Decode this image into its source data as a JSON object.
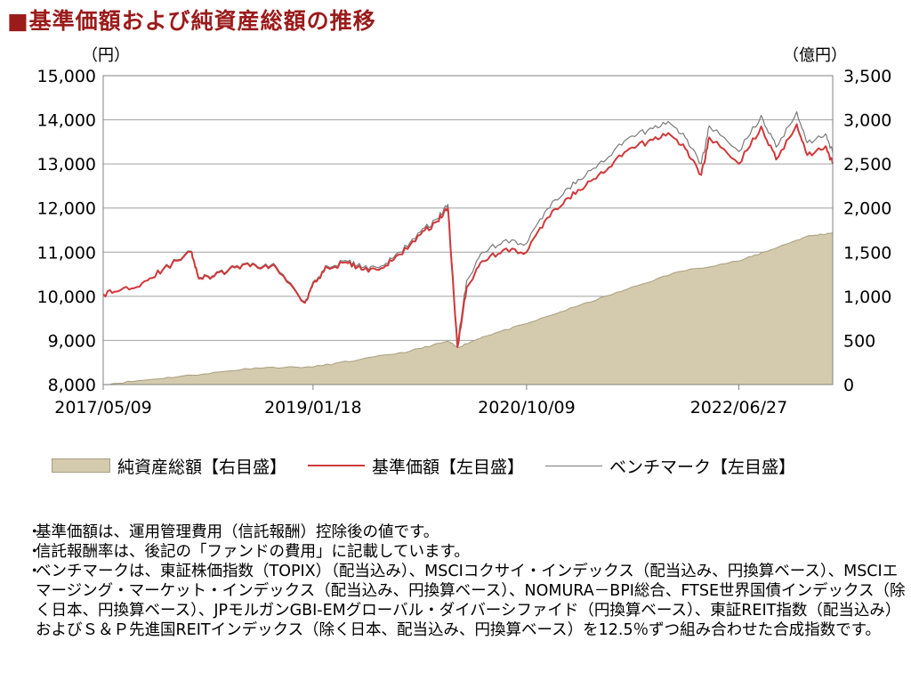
{
  "title": "■基準価額および純資産総額の推移",
  "left_unit": "（円）",
  "right_unit": "（億円）",
  "legend": {
    "nav_total": "純資産総額【右目盛】",
    "base_price": "基準価額【左目盛】",
    "benchmark": "ベンチマーク【左目盛】"
  },
  "notes": [
    "基準価額は、運用管理費用（信託報酬）控除後の値です。",
    "信託報酬率は、後記の「ファンドの費用」に記載しています。",
    "ベンチマークは、東証株価指数（TOPIX）（配当込み）、MSCIコクサイ・インデックス（配当込み、円換算ベース）、MSCIエマージング・マーケット・インデックス（配当込み、円換算ベース）、NOMURA－BPI総合、FTSE世界国債インデックス（除く日本、円換算ベース）、JPモルガンGBI-EMグローバル・ダイバーシファイド（円換算ベース）、東証REIT指数（配当込み）およびＳ＆Ｐ先進国REITインデックス（除く日本、配当込み、円換算ベース）を12.5％ずつ組み合わせた合成指数です。"
  ],
  "colors": {
    "title": "#9b1b1b",
    "base_price": "#d0393b",
    "benchmark": "#7a7a7a",
    "nav_area": "#d4cbae",
    "nav_area_edge": "#a89e80",
    "grid": "#a0a0a0"
  },
  "chart_data": {
    "type": "line",
    "x_ticks": [
      "2017/05/09",
      "2019/01/18",
      "2020/10/09",
      "2022/06/27"
    ],
    "x_range": [
      "2017/05/09",
      "2023/03/31"
    ],
    "y_left": {
      "ylim": [
        8000,
        15000
      ],
      "ticks": [
        "8,000",
        "9,000",
        "10,000",
        "11,000",
        "12,000",
        "13,000",
        "14,000",
        "15,000"
      ]
    },
    "y_right": {
      "ylim": [
        0,
        3500
      ],
      "ticks": [
        "0",
        "500",
        "1,000",
        "1,500",
        "2,000",
        "2,500",
        "3,000",
        "3,500"
      ]
    },
    "series": [
      {
        "name": "純資産総額【右目盛】",
        "type": "area",
        "axis": "right",
        "x": [
          "2017/05/09",
          "2017/10/01",
          "2018/03/01",
          "2018/08/01",
          "2019/01/18",
          "2019/06/01",
          "2019/11/01",
          "2020/02/20",
          "2020/03/19",
          "2020/06/01",
          "2020/10/09",
          "2021/03/01",
          "2021/08/01",
          "2022/01/01",
          "2022/06/27",
          "2022/10/01",
          "2023/01/15",
          "2023/03/31"
        ],
        "values": [
          0,
          60,
          120,
          190,
          200,
          280,
          380,
          490,
          420,
          540,
          690,
          880,
          1080,
          1280,
          1400,
          1530,
          1680,
          1720
        ]
      },
      {
        "name": "基準価額【左目盛】",
        "type": "line",
        "axis": "left",
        "x": [
          "2017/05/09",
          "2017/07/01",
          "2017/09/01",
          "2017/11/01",
          "2018/01/25",
          "2018/02/15",
          "2018/04/01",
          "2018/06/01",
          "2018/08/01",
          "2018/10/01",
          "2018/12/25",
          "2019/01/18",
          "2019/03/01",
          "2019/05/01",
          "2019/06/15",
          "2019/08/15",
          "2019/10/01",
          "2019/12/01",
          "2020/01/20",
          "2020/02/20",
          "2020/03/19",
          "2020/04/15",
          "2020/06/01",
          "2020/08/01",
          "2020/10/09",
          "2020/12/01",
          "2021/02/01",
          "2021/04/01",
          "2021/06/01",
          "2021/08/01",
          "2021/10/01",
          "2021/12/01",
          "2022/01/20",
          "2022/03/08",
          "2022/04/01",
          "2022/06/27",
          "2022/09/01",
          "2022/10/15",
          "2022/12/15",
          "2023/01/15",
          "2023/03/10",
          "2023/03/31"
        ],
        "values": [
          10050,
          10150,
          10300,
          10600,
          11000,
          10400,
          10450,
          10650,
          10700,
          10650,
          9850,
          10300,
          10650,
          10750,
          10600,
          10650,
          10950,
          11400,
          11700,
          12000,
          8850,
          10200,
          10800,
          11050,
          11000,
          11700,
          12200,
          12500,
          12850,
          13300,
          13500,
          13700,
          13350,
          12750,
          13600,
          13000,
          13850,
          13100,
          13900,
          13200,
          13400,
          13000
        ]
      },
      {
        "name": "ベンチマーク【左目盛】",
        "type": "line",
        "axis": "left",
        "x": [
          "2017/05/09",
          "2017/07/01",
          "2017/09/01",
          "2017/11/01",
          "2018/01/25",
          "2018/02/15",
          "2018/04/01",
          "2018/06/01",
          "2018/08/01",
          "2018/10/01",
          "2018/12/25",
          "2019/01/18",
          "2019/03/01",
          "2019/05/01",
          "2019/06/15",
          "2019/08/15",
          "2019/10/01",
          "2019/12/01",
          "2020/01/20",
          "2020/02/20",
          "2020/03/19",
          "2020/04/15",
          "2020/06/01",
          "2020/08/01",
          "2020/10/09",
          "2020/12/01",
          "2021/02/01",
          "2021/04/01",
          "2021/06/01",
          "2021/08/01",
          "2021/10/01",
          "2021/12/01",
          "2022/01/20",
          "2022/03/08",
          "2022/04/01",
          "2022/06/27",
          "2022/09/01",
          "2022/10/15",
          "2022/12/15",
          "2023/01/15",
          "2023/03/10",
          "2023/03/31"
        ],
        "values": [
          10050,
          10150,
          10300,
          10620,
          11020,
          10420,
          10470,
          10670,
          10720,
          10680,
          9870,
          10330,
          10680,
          10790,
          10650,
          10700,
          11000,
          11460,
          11760,
          12080,
          8950,
          10350,
          11000,
          11250,
          11200,
          11900,
          12420,
          12740,
          13100,
          13560,
          13760,
          13960,
          13600,
          13000,
          13860,
          13280,
          14100,
          13380,
          14180,
          13480,
          13680,
          13250
        ]
      }
    ]
  }
}
